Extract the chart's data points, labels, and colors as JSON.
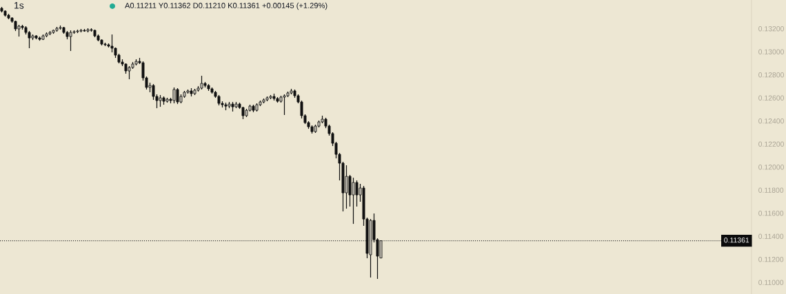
{
  "chart_data": {
    "type": "candlestick",
    "title": "1s",
    "annotations": [
      "A0.11211 Y0.11362 D0.11210 K0.11361 +0.00145 (+1.29%)"
    ],
    "categories": [
      null,
      null,
      null,
      null,
      null,
      null,
      null,
      null,
      null,
      null,
      null,
      null,
      null,
      null,
      null,
      null,
      null,
      null,
      null,
      null,
      null,
      null,
      null,
      null,
      null,
      null,
      null,
      null,
      null,
      null,
      null,
      null,
      null,
      null,
      null,
      null,
      null,
      null,
      null,
      null,
      null,
      null,
      null,
      null,
      null,
      null,
      null,
      null,
      null,
      null,
      null,
      null,
      null,
      null,
      null,
      null,
      null,
      null,
      null,
      null,
      null,
      null,
      null,
      null,
      null,
      null,
      null,
      null,
      null,
      null,
      null,
      null,
      null,
      null,
      null,
      null,
      null,
      null,
      null,
      null,
      null,
      null,
      null,
      null,
      null,
      null,
      null,
      null,
      null,
      null,
      null,
      null,
      null,
      null,
      null,
      null,
      null,
      null,
      null,
      null,
      null,
      null,
      null,
      null,
      null,
      null,
      null,
      null,
      null,
      null,
      null,
      null,
      null,
      null,
      null,
      null,
      null,
      null,
      null,
      null,
      null,
      null,
      null,
      null,
      null,
      null,
      null,
      null,
      null,
      null,
      null,
      null,
      null,
      null,
      null,
      null,
      null,
      null,
      null,
      null,
      null,
      null,
      null,
      null,
      null,
      null,
      null,
      null,
      null,
      null,
      null,
      null,
      null,
      null,
      null,
      null,
      null,
      null,
      null,
      null,
      null,
      null,
      null,
      null,
      null,
      null,
      null,
      null,
      null,
      null,
      null,
      null,
      null,
      null,
      null,
      null,
      null,
      null,
      null,
      null,
      null,
      null,
      null,
      null,
      null,
      null,
      null,
      null,
      null,
      null,
      null,
      null,
      null,
      null,
      null,
      null,
      null,
      null,
      null,
      null,
      null,
      null,
      null,
      null,
      null,
      null,
      null,
      null,
      null,
      null,
      null,
      null,
      null,
      null,
      null,
      null,
      null,
      null
    ],
    "ohlc": [
      [
        0.13376,
        0.13388,
        0.1334,
        0.13352
      ],
      [
        0.13352,
        0.13358,
        0.13304,
        0.13316
      ],
      [
        0.13316,
        0.13328,
        0.13281,
        0.13292
      ],
      [
        0.13292,
        0.13298,
        0.13251,
        0.13263
      ],
      [
        0.13263,
        0.13269,
        0.13179,
        0.13197
      ],
      [
        0.13197,
        0.13233,
        0.13131,
        0.13221
      ],
      [
        0.13221,
        0.13233,
        0.13191,
        0.13209
      ],
      [
        0.13209,
        0.13221,
        0.13149,
        0.13167
      ],
      [
        0.13167,
        0.13179,
        0.1303,
        0.13119
      ],
      [
        0.13119,
        0.13149,
        0.13101,
        0.13137
      ],
      [
        0.13137,
        0.13143,
        0.13107,
        0.13119
      ],
      [
        0.13119,
        0.13131,
        0.13095,
        0.13107
      ],
      [
        0.13107,
        0.13149,
        0.13101,
        0.13137
      ],
      [
        0.13137,
        0.13167,
        0.13125,
        0.13155
      ],
      [
        0.13155,
        0.13179,
        0.13143,
        0.13167
      ],
      [
        0.13167,
        0.13191,
        0.13155,
        0.13185
      ],
      [
        0.13185,
        0.13215,
        0.13173,
        0.13203
      ],
      [
        0.13203,
        0.13227,
        0.13191,
        0.13209
      ],
      [
        0.13209,
        0.13215,
        0.13155,
        0.13167
      ],
      [
        0.13167,
        0.13179,
        0.13107,
        0.13131
      ],
      [
        0.13131,
        0.13185,
        0.13006,
        0.13167
      ],
      [
        0.13167,
        0.13185,
        0.13155,
        0.13173
      ],
      [
        0.13173,
        0.13191,
        0.13161,
        0.13179
      ],
      [
        0.13179,
        0.13197,
        0.13167,
        0.13185
      ],
      [
        0.13185,
        0.13197,
        0.13173,
        0.13179
      ],
      [
        0.13179,
        0.13203,
        0.13167,
        0.13191
      ],
      [
        0.13191,
        0.13203,
        0.13173,
        0.13185
      ],
      [
        0.13185,
        0.13191,
        0.13125,
        0.13137
      ],
      [
        0.13137,
        0.13149,
        0.1309,
        0.13101
      ],
      [
        0.13101,
        0.13107,
        0.13054,
        0.13066
      ],
      [
        0.13066,
        0.13078,
        0.13048,
        0.1306
      ],
      [
        0.1306,
        0.13072,
        0.13036,
        0.13048
      ],
      [
        0.13048,
        0.13149,
        0.12994,
        0.1303
      ],
      [
        0.1303,
        0.13036,
        0.12946,
        0.1297
      ],
      [
        0.1297,
        0.12982,
        0.12898,
        0.1291
      ],
      [
        0.1291,
        0.12934,
        0.12875,
        0.12893
      ],
      [
        0.12893,
        0.12898,
        0.12809,
        0.12833
      ],
      [
        0.12833,
        0.12875,
        0.12761,
        0.12863
      ],
      [
        0.12863,
        0.1291,
        0.12851,
        0.12893
      ],
      [
        0.12893,
        0.12934,
        0.12881,
        0.12916
      ],
      [
        0.12916,
        0.12946,
        0.12893,
        0.12904
      ],
      [
        0.12904,
        0.12916,
        0.12749,
        0.12773
      ],
      [
        0.12773,
        0.12785,
        0.12672,
        0.1269
      ],
      [
        0.1269,
        0.12731,
        0.12648,
        0.12707
      ],
      [
        0.12707,
        0.12719,
        0.12582,
        0.12612
      ],
      [
        0.12612,
        0.1263,
        0.1251,
        0.12576
      ],
      [
        0.12576,
        0.12624,
        0.12522,
        0.126
      ],
      [
        0.126,
        0.12612,
        0.1254,
        0.1257
      ],
      [
        0.1257,
        0.126,
        0.12558,
        0.12588
      ],
      [
        0.12588,
        0.126,
        0.12552,
        0.12576
      ],
      [
        0.12576,
        0.1269,
        0.12552,
        0.12672
      ],
      [
        0.12672,
        0.12684,
        0.12546,
        0.12564
      ],
      [
        0.12564,
        0.1263,
        0.12552,
        0.12612
      ],
      [
        0.12612,
        0.1266,
        0.126,
        0.12648
      ],
      [
        0.12648,
        0.12672,
        0.12636,
        0.1266
      ],
      [
        0.1266,
        0.12684,
        0.12612,
        0.12636
      ],
      [
        0.12636,
        0.12678,
        0.12624,
        0.12666
      ],
      [
        0.12666,
        0.12701,
        0.12654,
        0.12684
      ],
      [
        0.12684,
        0.12791,
        0.12672,
        0.12725
      ],
      [
        0.12725,
        0.12737,
        0.1269,
        0.12707
      ],
      [
        0.12707,
        0.12719,
        0.1266,
        0.12678
      ],
      [
        0.12678,
        0.1269,
        0.12636,
        0.12648
      ],
      [
        0.12648,
        0.1266,
        0.126,
        0.12612
      ],
      [
        0.12612,
        0.12624,
        0.12534,
        0.12552
      ],
      [
        0.12552,
        0.1257,
        0.12516,
        0.1254
      ],
      [
        0.1254,
        0.12558,
        0.12492,
        0.12528
      ],
      [
        0.12528,
        0.12564,
        0.1251,
        0.12546
      ],
      [
        0.12546,
        0.12564,
        0.12481,
        0.12522
      ],
      [
        0.12522,
        0.12564,
        0.1251,
        0.12546
      ],
      [
        0.12546,
        0.12558,
        0.12504,
        0.12516
      ],
      [
        0.12516,
        0.12522,
        0.12415,
        0.12445
      ],
      [
        0.12445,
        0.12504,
        0.12433,
        0.12492
      ],
      [
        0.12492,
        0.1254,
        0.12481,
        0.12528
      ],
      [
        0.12528,
        0.1254,
        0.12475,
        0.12492
      ],
      [
        0.12492,
        0.12552,
        0.12481,
        0.1254
      ],
      [
        0.1254,
        0.12576,
        0.12528,
        0.12564
      ],
      [
        0.12564,
        0.12594,
        0.12552,
        0.12582
      ],
      [
        0.12582,
        0.12612,
        0.1257,
        0.126
      ],
      [
        0.126,
        0.12624,
        0.12588,
        0.12612
      ],
      [
        0.12612,
        0.12636,
        0.12576,
        0.12594
      ],
      [
        0.12594,
        0.12606,
        0.12558,
        0.1257
      ],
      [
        0.1257,
        0.12618,
        0.12558,
        0.12606
      ],
      [
        0.12606,
        0.1263,
        0.12451,
        0.12618
      ],
      [
        0.12618,
        0.12654,
        0.12606,
        0.12642
      ],
      [
        0.12642,
        0.12678,
        0.1263,
        0.1266
      ],
      [
        0.1266,
        0.12672,
        0.126,
        0.12618
      ],
      [
        0.12618,
        0.1263,
        0.12552,
        0.12564
      ],
      [
        0.12564,
        0.12576,
        0.12421,
        0.12445
      ],
      [
        0.12445,
        0.12457,
        0.12373,
        0.12385
      ],
      [
        0.12385,
        0.12397,
        0.12331,
        0.12349
      ],
      [
        0.12349,
        0.12361,
        0.1229,
        0.12307
      ],
      [
        0.12307,
        0.12367,
        0.12296,
        0.12355
      ],
      [
        0.12355,
        0.12403,
        0.12343,
        0.12391
      ],
      [
        0.12391,
        0.12445,
        0.12379,
        0.12415
      ],
      [
        0.12415,
        0.12427,
        0.12337,
        0.12355
      ],
      [
        0.12355,
        0.12367,
        0.12272,
        0.1229
      ],
      [
        0.1229,
        0.12302,
        0.12182,
        0.12206
      ],
      [
        0.12206,
        0.12218,
        0.12075,
        0.1211
      ],
      [
        0.1211,
        0.12122,
        0.11884,
        0.12033
      ],
      [
        0.12033,
        0.12045,
        0.11615,
        0.11776
      ],
      [
        0.11776,
        0.12015,
        0.11639,
        0.11919
      ],
      [
        0.11919,
        0.11931,
        0.11657,
        0.11758
      ],
      [
        0.11758,
        0.11907,
        0.11507,
        0.11866
      ],
      [
        0.11866,
        0.11884,
        0.11657,
        0.11758
      ],
      [
        0.11758,
        0.11854,
        0.11699,
        0.11818
      ],
      [
        0.11818,
        0.11836,
        0.1149,
        0.11549
      ],
      [
        0.11549,
        0.11561,
        0.11209,
        0.11251
      ],
      [
        0.11239,
        0.11549,
        0.11042,
        0.11537
      ],
      [
        0.11537,
        0.11597,
        0.11346,
        0.1137
      ],
      [
        0.1137,
        0.11382,
        0.1103,
        0.11227
      ],
      [
        0.11211,
        0.11362,
        0.1121,
        0.11361
      ],
      null,
      null,
      null,
      null,
      null,
      null,
      null,
      null,
      null,
      null,
      null,
      null,
      null,
      null,
      null,
      null,
      null,
      null,
      null,
      null,
      null,
      null,
      null,
      null,
      null,
      null,
      null,
      null,
      null,
      null,
      null,
      null,
      null,
      null,
      null,
      null,
      null,
      null,
      null,
      null,
      null,
      null,
      null,
      null,
      null,
      null,
      null,
      null,
      null,
      null,
      null,
      null,
      null,
      null,
      null,
      null,
      null,
      null,
      null,
      null,
      null,
      null,
      null,
      null,
      null,
      null,
      null,
      null,
      null,
      null,
      null,
      null,
      null,
      null,
      null,
      null,
      null,
      null,
      null,
      null,
      null,
      null,
      null,
      null,
      null,
      null,
      null,
      null,
      null,
      null,
      null,
      null,
      null,
      null,
      null,
      null,
      null,
      null,
      null,
      null,
      null,
      null,
      null,
      null,
      null,
      null,
      null
    ],
    "colors": [
      "#111111",
      "#111111",
      "#111111",
      "#111111",
      "#111111",
      "#c8c4b8",
      "#111111",
      "#111111",
      "#111111",
      "#c8c4b8",
      "#111111",
      "#111111",
      "#c8c4b8",
      "#c8c4b8",
      "#c8c4b8",
      "#c8c4b8",
      "#c8c4b8",
      "#c8c4b8",
      "#111111",
      "#111111",
      "#c8c4b8",
      "#c8c4b8",
      "#c8c4b8",
      "#c8c4b8",
      "#111111",
      "#c8c4b8",
      "#111111",
      "#111111",
      "#111111",
      "#111111",
      "#111111",
      "#111111",
      "#111111",
      "#111111",
      "#111111",
      "#111111",
      "#111111",
      "#c8c4b8",
      "#c8c4b8",
      "#c8c4b8",
      "#111111",
      "#111111",
      "#111111",
      "#c8c4b8",
      "#111111",
      "#111111",
      "#c8c4b8",
      "#111111",
      "#c8c4b8",
      "#111111",
      "#c8c4b8",
      "#111111",
      "#c8c4b8",
      "#c8c4b8",
      "#c8c4b8",
      "#111111",
      "#c8c4b8",
      "#c8c4b8",
      "#c8c4b8",
      "#111111",
      "#111111",
      "#111111",
      "#111111",
      "#111111",
      "#111111",
      "#111111",
      "#c8c4b8",
      "#111111",
      "#c8c4b8",
      "#111111",
      "#111111",
      "#c8c4b8",
      "#c8c4b8",
      "#111111",
      "#c8c4b8",
      "#c8c4b8",
      "#c8c4b8",
      "#c8c4b8",
      "#c8c4b8",
      "#111111",
      "#111111",
      "#c8c4b8",
      "#c8c4b8",
      "#c8c4b8",
      "#c8c4b8",
      "#111111",
      "#111111",
      "#111111",
      "#111111",
      "#111111",
      "#111111",
      "#c8c4b8",
      "#c8c4b8",
      "#c8c4b8",
      "#111111",
      "#111111",
      "#111111",
      "#111111",
      "#111111",
      "#111111",
      "#c8c4b8",
      "#111111",
      "#c8c4b8",
      "#111111",
      "#c8c4b8",
      "#111111",
      "#111111",
      "#c8c4b8",
      "#111111",
      "#111111",
      "#c8c4b8",
      null,
      null,
      null,
      null,
      null,
      null,
      null,
      null,
      null,
      null,
      null,
      null,
      null,
      null,
      null,
      null,
      null,
      null,
      null,
      null,
      null,
      null,
      null,
      null,
      null,
      null,
      null,
      null,
      null,
      null,
      null,
      null,
      null,
      null,
      null,
      null,
      null,
      null,
      null,
      null,
      null,
      null,
      null,
      null,
      null,
      null,
      null,
      null,
      null,
      null,
      null,
      null,
      null,
      null,
      null,
      null,
      null,
      null,
      null,
      null,
      null,
      null,
      null,
      null,
      null,
      null,
      null,
      null,
      null,
      null,
      null,
      null,
      null,
      null,
      null,
      null,
      null,
      null,
      null,
      null,
      null,
      null,
      null,
      null,
      null,
      null,
      null,
      null,
      null,
      null,
      null,
      null,
      null,
      null,
      null,
      null,
      null,
      null,
      null,
      null,
      null,
      null,
      null,
      null,
      null,
      null,
      null
    ],
    "color": "#111111",
    "ylim": [
      0.10899,
      0.13448
    ],
    "yticks": [
      {
        "value": 0.11,
        "label": "0.11000"
      },
      {
        "value": 0.112,
        "label": "0.11200"
      },
      {
        "value": 0.114,
        "label": "0.11400"
      },
      {
        "value": 0.116,
        "label": "0.11600"
      },
      {
        "value": 0.118,
        "label": "0.11800"
      },
      {
        "value": 0.12,
        "label": "0.12000"
      },
      {
        "value": 0.122,
        "label": "0.12200"
      },
      {
        "value": 0.124,
        "label": "0.12400"
      },
      {
        "value": 0.126,
        "label": "0.12600"
      },
      {
        "value": 0.128,
        "label": "0.12800"
      },
      {
        "value": 0.13,
        "label": "0.13000"
      },
      {
        "value": 0.132,
        "label": "0.13200"
      }
    ],
    "tick_labels": "y",
    "ref_lines": [
      {
        "axis": "y",
        "value": 0.11361,
        "label": "0.11361",
        "color": "#333333",
        "line_style": "dotted"
      }
    ]
  }
}
